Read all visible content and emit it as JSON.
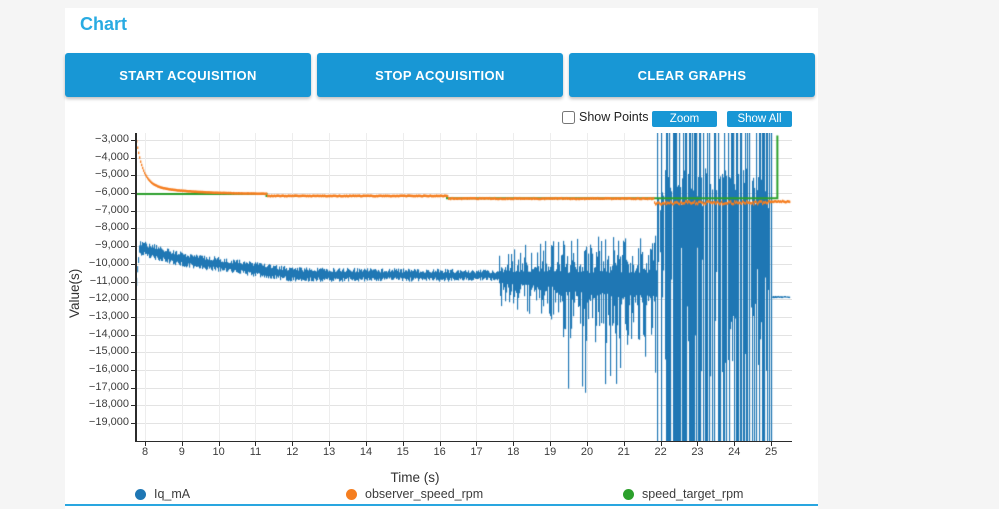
{
  "page": {
    "title": "Chart"
  },
  "toolbar": {
    "start_label": "START ACQUISITION",
    "stop_label": "STOP ACQUISITION",
    "clear_label": "CLEAR GRAPHS"
  },
  "controls": {
    "show_points_label": "Show Points",
    "show_points_checked": false,
    "zoom_label": "Zoom",
    "show_all_label": "Show All"
  },
  "colors": {
    "accent": "#1897d5",
    "divider": "#29a6e0",
    "title": "#29abe2",
    "series_blue": "#1f77b4",
    "series_orange": "#f57e20",
    "series_green": "#2ca02c"
  },
  "legend": [
    {
      "label": "Iq_mA",
      "color": "#1f77b4"
    },
    {
      "label": "observer_speed_rpm",
      "color": "#f57e20"
    },
    {
      "label": "speed_target_rpm",
      "color": "#2ca02c"
    }
  ],
  "chart_data": {
    "type": "line",
    "title": "",
    "xlabel": "Time (s)",
    "ylabel": "Value(s)",
    "xlim": [
      7.73,
      25.5
    ],
    "ylim": [
      -20000,
      -2600
    ],
    "grid": true,
    "legend_position": "bottom",
    "x_ticks": [
      8,
      9,
      10,
      11,
      12,
      13,
      14,
      15,
      16,
      17,
      18,
      19,
      20,
      21,
      22,
      23,
      24,
      25
    ],
    "x_tick_labels": [
      "8",
      "9",
      "10",
      "11",
      "12",
      "13",
      "14",
      "15",
      "16",
      "17",
      "18",
      "19",
      "20",
      "21",
      "22",
      "23",
      "24",
      "25"
    ],
    "y_ticks": [
      -3000,
      -4000,
      -5000,
      -6000,
      -7000,
      -8000,
      -9000,
      -10000,
      -11000,
      -12000,
      -13000,
      -14000,
      -15000,
      -16000,
      -17000,
      -18000,
      -19000
    ],
    "y_tick_labels": [
      "−3,000",
      "−4,000",
      "−5,000",
      "−6,000",
      "−7,000",
      "−8,000",
      "−9,000",
      "−10,000",
      "−11,000",
      "−12,000",
      "−13,000",
      "−14,000",
      "−15,000",
      "−16,000",
      "−17,000",
      "−18,000",
      "−19,000"
    ],
    "series": [
      {
        "name": "Iq_mA",
        "color": "#1f77b4",
        "kind": "noise-envelope",
        "segments": [
          {
            "t": [
              7.728,
              7.84
            ],
            "mean": [
              -11600,
              -9100
            ],
            "amp": [
              260,
              300
            ]
          },
          {
            "t": [
              7.84,
              9.0
            ],
            "mean": [
              -9100,
              -9750
            ],
            "amp": [
              460,
              430
            ]
          },
          {
            "t": [
              9.0,
              12.0
            ],
            "mean": [
              -9750,
              -10600
            ],
            "amp": [
              430,
              420
            ]
          },
          {
            "t": [
              12.0,
              16.4
            ],
            "mean": [
              -10600,
              -10650
            ],
            "amp": [
              420,
              360
            ]
          },
          {
            "t": [
              16.4,
              17.6
            ],
            "mean": [
              -10650,
              -10650
            ],
            "amp": [
              300,
              330
            ]
          },
          {
            "t": [
              17.6,
              19.3
            ],
            "mean": [
              -10750,
              -10850
            ],
            "amp_up": [
              1500,
              2400
            ],
            "amp_dn": [
              1700,
              2700
            ],
            "spiky": true
          },
          {
            "t": [
              19.3,
              21.9
            ],
            "mean": [
              -10950,
              -11000
            ],
            "amp_up": [
              2400,
              2800
            ],
            "amp_dn": [
              3200,
              4600
            ],
            "spiky": true,
            "deep_spike_p": 0.05,
            "deep_spike_v": -15800
          },
          {
            "t": [
              21.9,
              25.0
            ],
            "extreme": true,
            "top_clip_p": 0.58,
            "bot_clip_p": 0.7,
            "gap_p": 0.08,
            "top_range": [
              -5900,
              -4600
            ],
            "bottom_range": [
              -12000,
              -16500
            ]
          },
          {
            "t": [
              25.0,
              25.5
            ],
            "mean": [
              -11880,
              -11880
            ],
            "amp": [
              70,
              60
            ]
          }
        ]
      },
      {
        "name": "observer_speed_rpm",
        "color": "#f57e20",
        "kind": "decay-track",
        "decay": {
          "t0": 7.728,
          "v_inf": -6060,
          "a1": 2800,
          "tau1": 0.18,
          "a2": 600,
          "tau2": 1.1,
          "t_end": 11.3
        },
        "track": [
          {
            "t": [
              11.3,
              16.2
            ],
            "v": -6160,
            "noise": 20
          },
          {
            "t": [
              16.2,
              21.8
            ],
            "v": -6310,
            "noise": 25
          },
          {
            "t": [
              21.8,
              24.9
            ],
            "v": -6550,
            "noise": 85
          },
          {
            "t": [
              24.9,
              25.5
            ],
            "v": -6480,
            "noise": 40
          }
        ]
      },
      {
        "name": "speed_target_rpm",
        "color": "#2ca02c",
        "kind": "step-line",
        "points": [
          [
            7.728,
            -6050
          ],
          [
            11.3,
            -6050
          ],
          [
            11.3,
            -6160
          ],
          [
            16.2,
            -6160
          ],
          [
            16.2,
            -6290
          ],
          [
            25.17,
            -6290
          ],
          [
            25.17,
            -2750
          ]
        ]
      }
    ]
  }
}
